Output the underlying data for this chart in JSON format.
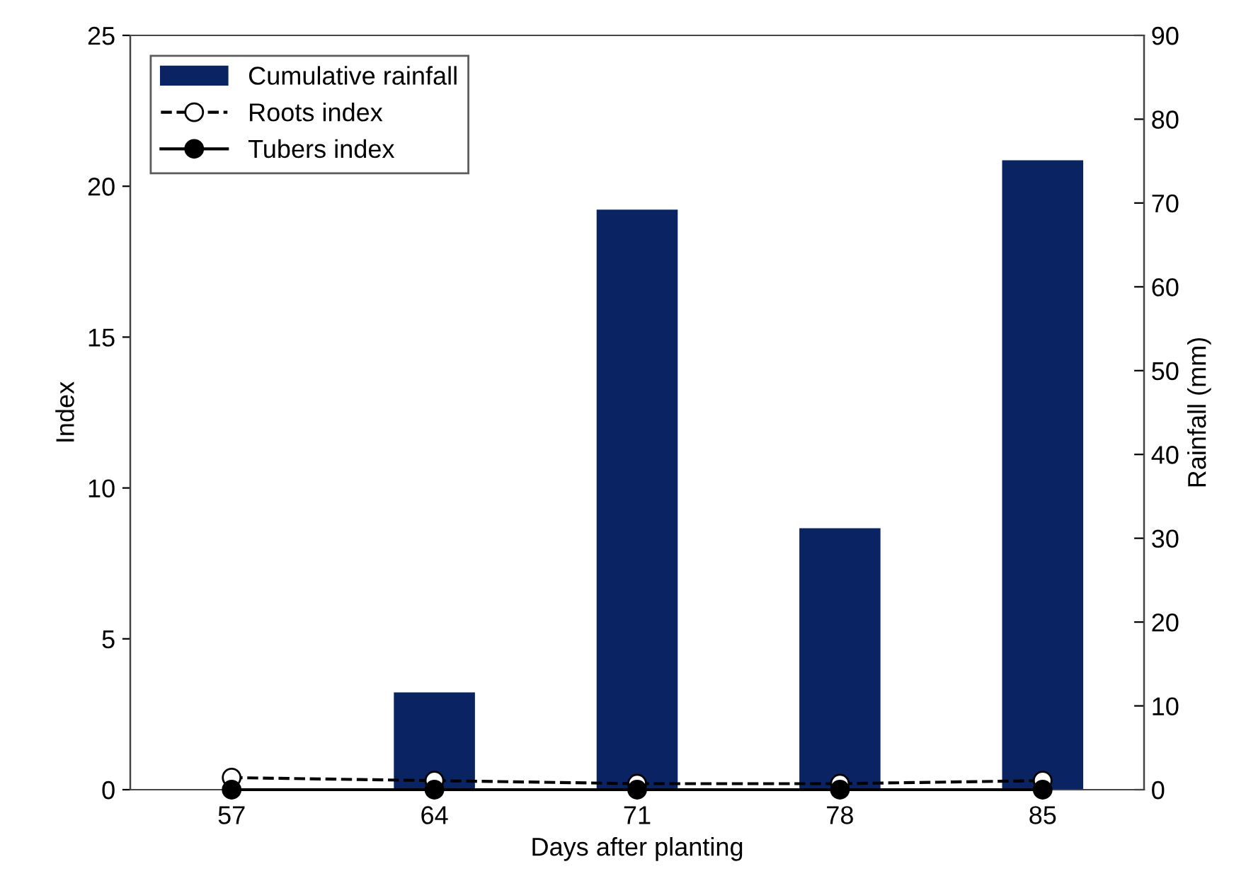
{
  "chart_data": {
    "type": "bar",
    "xlabel": "Days after planting",
    "ylabel": "Index",
    "y2label": "Rainfall (mm)",
    "categories": [
      "57",
      "64",
      "71",
      "78",
      "85"
    ],
    "series": [
      {
        "name": "Cumulative rainfall",
        "axis": "y2",
        "color": "#0a2463",
        "values": [
          0,
          11.6,
          69.2,
          31.2,
          75.1
        ]
      },
      {
        "name": "Roots index",
        "type": "line",
        "color": "#000000",
        "line_style": "dashed",
        "marker": "circle",
        "values": [
          0.4,
          0.3,
          0.2,
          0.2,
          0.3
        ]
      },
      {
        "name": "Tubers index",
        "type": "line",
        "color": "#000000",
        "line_style": "solid",
        "marker": "circle",
        "values": [
          0,
          0,
          0,
          0,
          0
        ]
      }
    ],
    "ylim": [
      0,
      25
    ],
    "yticks": [
      0,
      5,
      10,
      15,
      20,
      25
    ],
    "y2lim": [
      0,
      90
    ],
    "y2ticks": [
      0,
      10,
      20,
      30,
      40,
      50,
      60,
      70,
      80,
      90
    ],
    "grid": false,
    "legend": "top left"
  }
}
